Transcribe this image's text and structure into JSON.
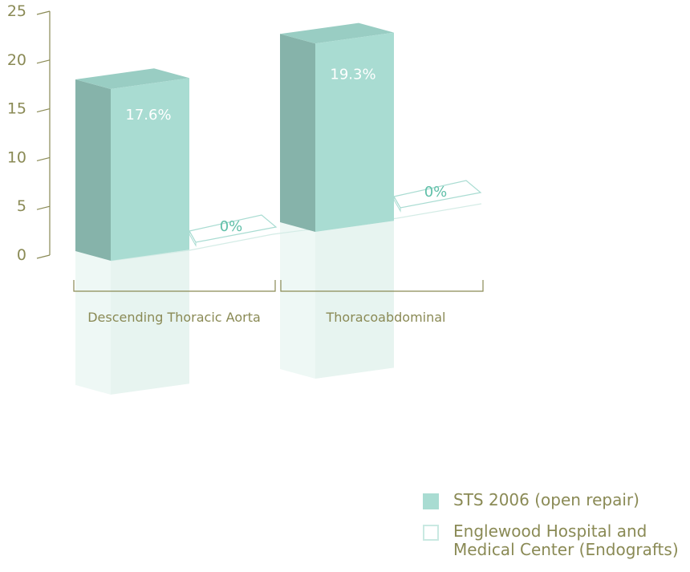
{
  "chart_data": {
    "type": "bar",
    "categories": [
      "Descending Thoracic Aorta",
      "Thoracoabdominal"
    ],
    "series": [
      {
        "name": "STS 2006 (open repair)",
        "values": [
          17.6,
          19.3
        ],
        "labels": [
          "17.6%",
          "19.3%"
        ]
      },
      {
        "name": "Englewood Hospital and Medical Center (Endografts)",
        "values": [
          0,
          0
        ],
        "labels": [
          "0%",
          "0%"
        ]
      }
    ],
    "y_ticks": [
      "0",
      "5",
      "10",
      "15",
      "20",
      "25"
    ],
    "ylim": [
      0,
      25
    ],
    "grid": false,
    "legend_position": "bottom-right",
    "style": "3d-bars-with-reflection"
  },
  "legend": {
    "items": [
      {
        "label": "STS 2006 (open repair)"
      },
      {
        "label": "Englewood Hospital and Medical Center (Endografts)"
      }
    ]
  },
  "colors": {
    "bar_front": "#a9dcd2",
    "bar_top": "#99cdc3",
    "bar_side": "#86b3aa",
    "zero_outline": "#a9dcd2",
    "zero_text": "#5fbfa8",
    "axis": "#8a8a55",
    "reflection": "#e7f4f0"
  }
}
